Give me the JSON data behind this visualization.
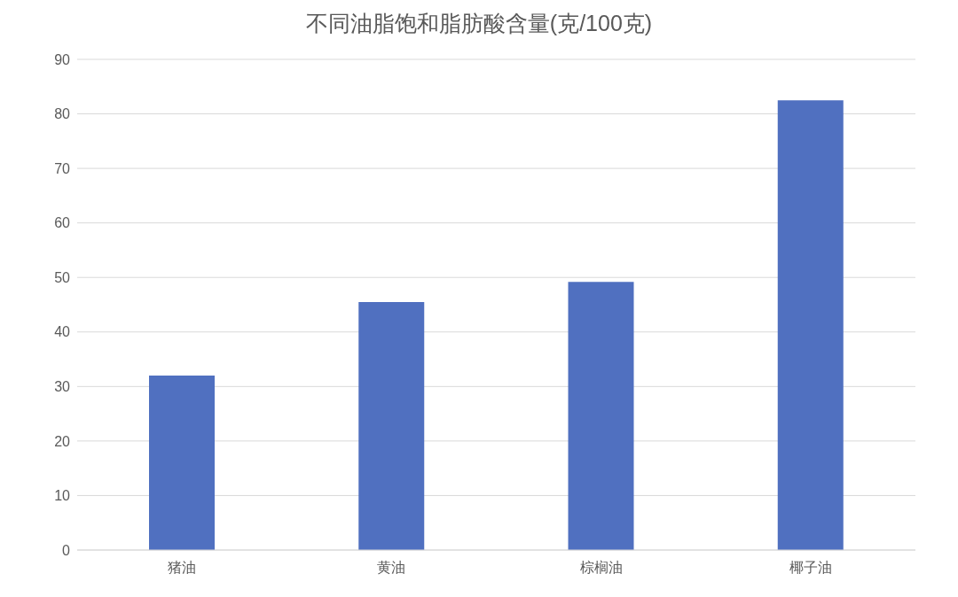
{
  "chart_data": {
    "type": "bar",
    "title": "不同油脂饱和脂肪酸含量(克/100克)",
    "categories": [
      "猪油",
      "黄油",
      "棕榈油",
      "椰子油"
    ],
    "values": [
      32.0,
      45.5,
      49.2,
      82.5
    ],
    "color": "#5070c0",
    "ylim": [
      0,
      90
    ],
    "yticks": [
      0,
      10,
      20,
      30,
      40,
      50,
      60,
      70,
      80,
      90
    ],
    "grid": "y"
  }
}
